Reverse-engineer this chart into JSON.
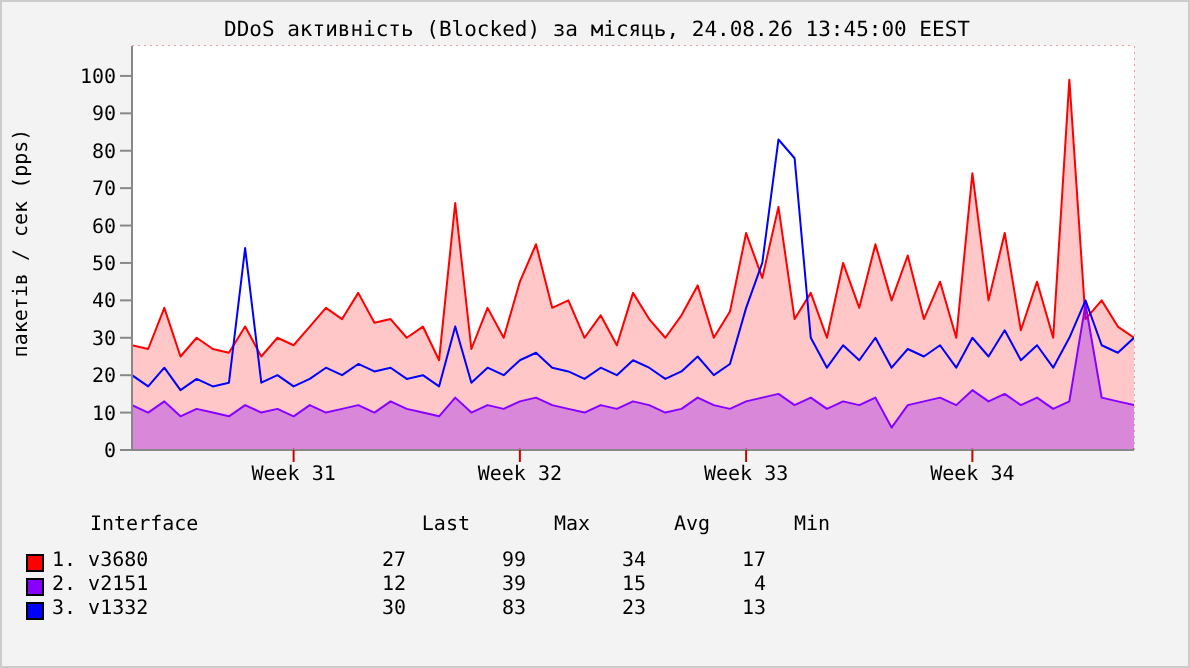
{
  "chart_data": {
    "type": "area",
    "title": "DDoS активність (Blocked) за місяць, 24.08.26 13:45:00 EEST",
    "ylabel": "пакетів / сек (pps)",
    "categories": [
      null,
      null,
      null,
      null,
      null,
      null,
      null,
      null,
      null,
      null,
      "Week 31",
      null,
      null,
      null,
      null,
      null,
      null,
      null,
      null,
      null,
      null,
      null,
      null,
      null,
      "Week 32",
      null,
      null,
      null,
      null,
      null,
      null,
      null,
      null,
      null,
      null,
      null,
      null,
      null,
      "Week 33",
      null,
      null,
      null,
      null,
      null,
      null,
      null,
      null,
      null,
      null,
      null,
      null,
      null,
      "Week 34",
      null,
      null,
      null,
      null,
      null,
      null,
      null,
      null,
      null,
      null
    ],
    "series": [
      {
        "name": "1. v3680",
        "color": "#ff0000",
        "values": [
          28,
          27,
          38,
          25,
          30,
          27,
          26,
          33,
          25,
          30,
          28,
          33,
          38,
          35,
          42,
          34,
          35,
          30,
          33,
          24,
          66,
          27,
          38,
          30,
          45,
          55,
          38,
          40,
          30,
          36,
          28,
          42,
          35,
          30,
          36,
          44,
          30,
          37,
          58,
          46,
          65,
          35,
          42,
          30,
          50,
          38,
          55,
          40,
          52,
          35,
          45,
          30,
          74,
          40,
          58,
          32,
          45,
          30,
          99,
          35,
          40,
          33,
          30
        ]
      },
      {
        "name": "2. v2151",
        "color": "#8800ff",
        "values": [
          12,
          10,
          13,
          9,
          11,
          10,
          9,
          12,
          10,
          11,
          9,
          12,
          10,
          11,
          12,
          10,
          13,
          11,
          10,
          9,
          14,
          10,
          12,
          11,
          13,
          14,
          12,
          11,
          10,
          12,
          11,
          13,
          12,
          10,
          11,
          14,
          12,
          11,
          13,
          14,
          15,
          12,
          14,
          11,
          13,
          12,
          14,
          6,
          12,
          13,
          14,
          12,
          16,
          13,
          15,
          12,
          14,
          11,
          13,
          39,
          14,
          13,
          12
        ]
      },
      {
        "name": "3. v1332",
        "type": "line",
        "color": "#0000ff",
        "values": [
          20,
          17,
          22,
          16,
          19,
          17,
          18,
          54,
          18,
          20,
          17,
          19,
          22,
          20,
          23,
          21,
          22,
          19,
          20,
          17,
          33,
          18,
          22,
          20,
          24,
          26,
          22,
          21,
          19,
          22,
          20,
          24,
          22,
          19,
          21,
          25,
          20,
          23,
          38,
          50,
          83,
          78,
          30,
          22,
          28,
          24,
          30,
          22,
          27,
          25,
          28,
          22,
          30,
          25,
          32,
          24,
          28,
          22,
          30,
          40,
          28,
          26,
          30
        ]
      }
    ],
    "ylim": [
      0,
      108
    ],
    "yticks": [
      0,
      10,
      20,
      30,
      40,
      50,
      60,
      70,
      80,
      90,
      100
    ],
    "grid": true,
    "legend": "bottom",
    "annotations": [
      "Interface",
      "Last",
      "Max",
      "Avg",
      "Min",
      "27",
      "99",
      "34",
      "17",
      "12",
      "39",
      "15",
      "4",
      "30",
      "83",
      "23",
      "13"
    ]
  }
}
